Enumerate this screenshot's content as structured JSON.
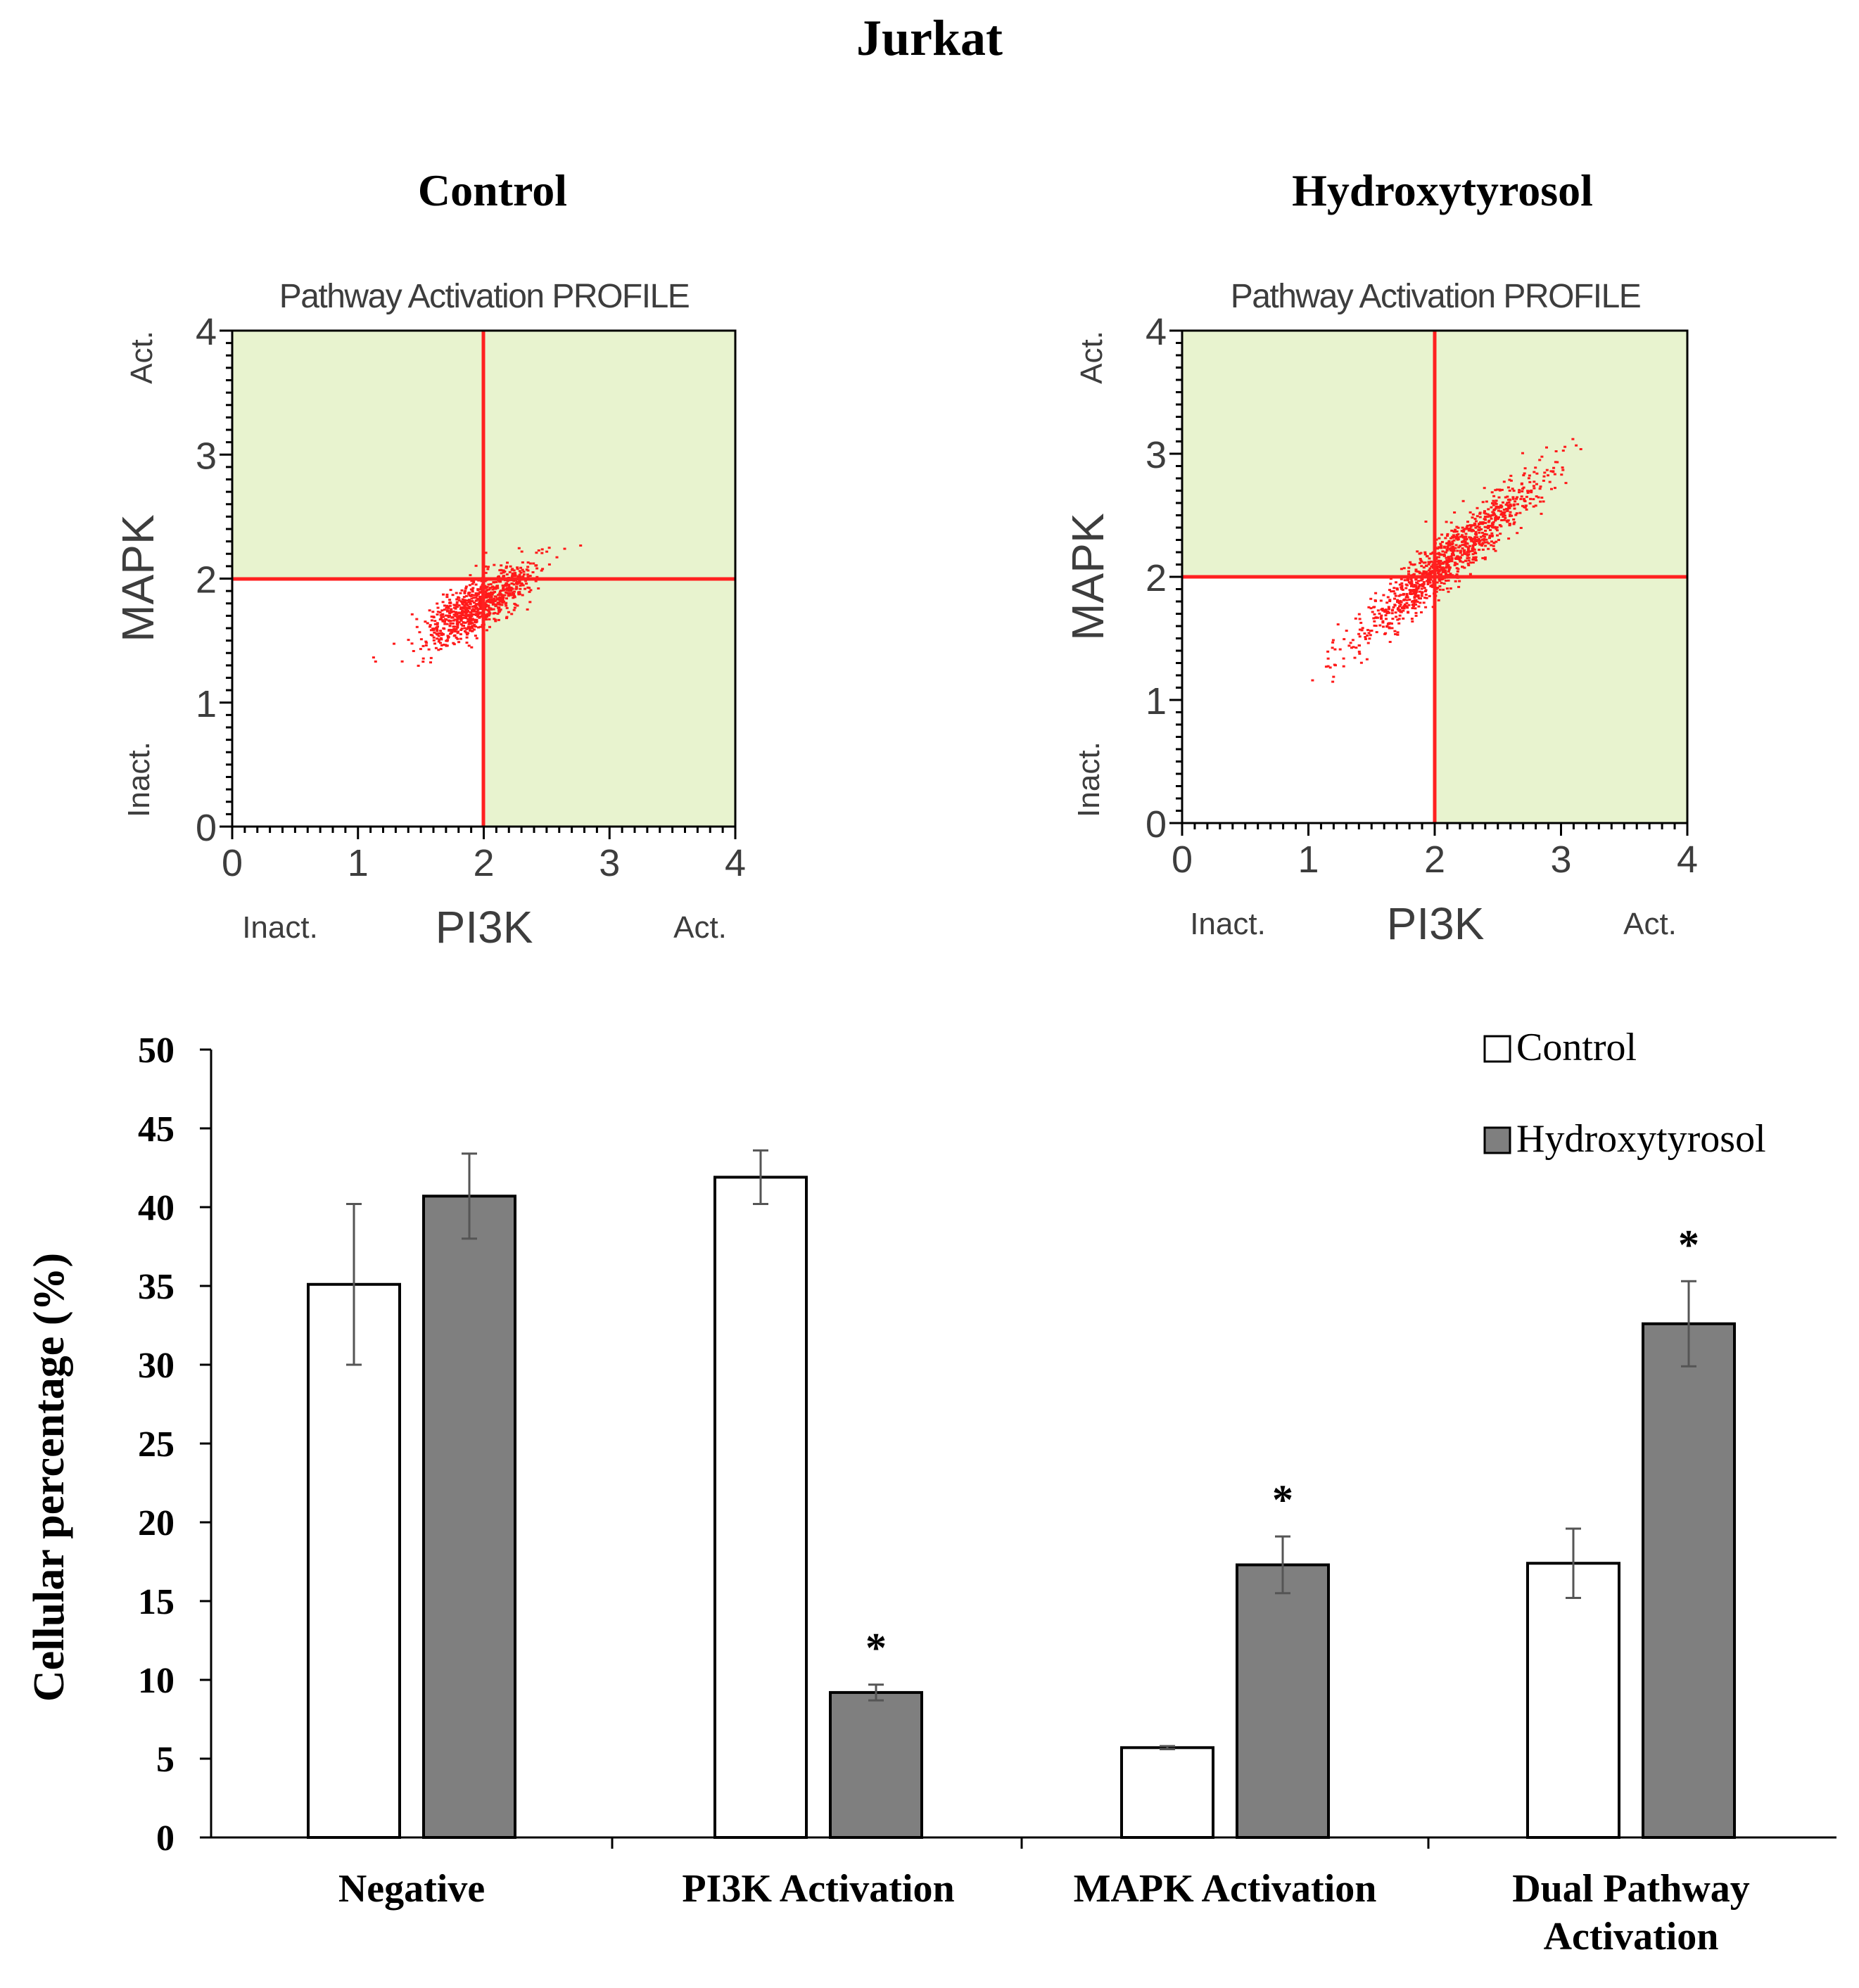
{
  "figure_title": "Jurkat",
  "colors": {
    "quadrant_fill": "#e8f3cf",
    "quadrant_line": "#ff2020",
    "scatter_point": "#ff1a1a",
    "control_bar": "#ffffff",
    "hydroxytyrosol_bar": "#7f7f7f",
    "axis": "#000000"
  },
  "chart_data": [
    {
      "type": "scatter",
      "panel_title": "Control",
      "plot_title": "Pathway Activation PROFILE",
      "xlabel": "PI3K",
      "ylabel": "MAPK",
      "x_low_label": "Inact.",
      "x_high_label": "Act.",
      "y_low_label": "Inact.",
      "y_high_label": "Act.",
      "xlim": [
        0,
        4
      ],
      "ylim": [
        0,
        4
      ],
      "x_ticks": [
        "0",
        "1",
        "2",
        "3",
        "4"
      ],
      "y_ticks": [
        "0",
        "1",
        "2",
        "3",
        "4"
      ],
      "threshold_x": 2,
      "threshold_y": 2,
      "cloud": {
        "center": [
          1.95,
          1.8
        ],
        "spread_x": 0.2,
        "spread_y": 0.14,
        "range_x": [
          0.8,
          2.85
        ],
        "range_y": [
          1.2,
          2.45
        ]
      }
    },
    {
      "type": "scatter",
      "panel_title": "Hydroxytyrosol",
      "plot_title": "Pathway Activation PROFILE",
      "xlabel": "PI3K",
      "ylabel": "MAPK",
      "x_low_label": "Inact.",
      "x_high_label": "Act.",
      "y_low_label": "Inact.",
      "y_high_label": "Act.",
      "xlim": [
        0,
        4
      ],
      "ylim": [
        0,
        4
      ],
      "x_ticks": [
        "0",
        "1",
        "2",
        "3",
        "4"
      ],
      "y_ticks": [
        "0",
        "1",
        "2",
        "3",
        "4"
      ],
      "threshold_x": 2,
      "threshold_y": 2,
      "cloud": {
        "center": [
          2.1,
          2.15
        ],
        "spread_x": 0.38,
        "spread_y": 0.35,
        "range_x": [
          0.85,
          3.15
        ],
        "range_y": [
          1.15,
          3.15
        ]
      }
    },
    {
      "type": "bar",
      "categories": [
        "Negative",
        "PI3K Activation",
        "MAPK Activation",
        "Dual Pathway Activation"
      ],
      "category_lines": [
        [
          "Negative"
        ],
        [
          "PI3K Activation"
        ],
        [
          "MAPK Activation"
        ],
        [
          "Dual Pathway",
          "Activation"
        ]
      ],
      "ylabel": "Cellular percentage (%)",
      "ylim": [
        0,
        50
      ],
      "y_ticks": [
        "0",
        "5",
        "10",
        "15",
        "20",
        "25",
        "30",
        "35",
        "40",
        "45",
        "50"
      ],
      "legend_position": "top-right",
      "series": [
        {
          "name": "Control",
          "values": [
            35.1,
            41.9,
            5.7,
            17.4
          ],
          "errors": [
            5.1,
            1.7,
            0.1,
            2.2
          ],
          "significant": [
            false,
            false,
            false,
            false
          ]
        },
        {
          "name": "Hydroxytyrosol",
          "values": [
            40.7,
            9.2,
            17.3,
            32.6
          ],
          "errors": [
            2.7,
            0.5,
            1.8,
            2.7
          ],
          "significant": [
            false,
            true,
            true,
            true
          ]
        }
      ],
      "significance_marker": "*"
    }
  ]
}
